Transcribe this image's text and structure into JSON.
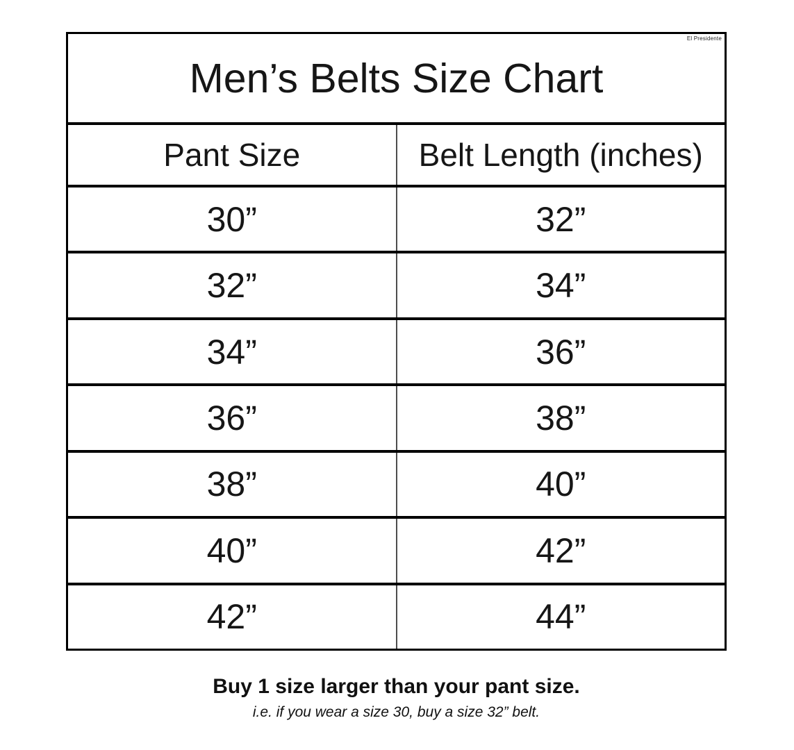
{
  "page": {
    "watermark": "El Presidente"
  },
  "chart_data": {
    "type": "table",
    "title": "Men’s Belts Size Chart",
    "columns": [
      "Pant Size",
      "Belt Length (inches)"
    ],
    "rows": [
      [
        "30”",
        "32”"
      ],
      [
        "32”",
        "34”"
      ],
      [
        "34”",
        "36”"
      ],
      [
        "36”",
        "38”"
      ],
      [
        "38”",
        "40”"
      ],
      [
        "40”",
        "42”"
      ],
      [
        "42”",
        "44”"
      ]
    ],
    "footnote_bold": "Buy 1 size larger than your pant size.",
    "footnote_italic": "i.e. if you wear a size 30, buy a size 32” belt."
  },
  "colors": {
    "background": "#ffffff",
    "outer_border": "#000000",
    "row_divider": "#000000",
    "column_divider": "#4d4d4d",
    "text": "#161616"
  }
}
